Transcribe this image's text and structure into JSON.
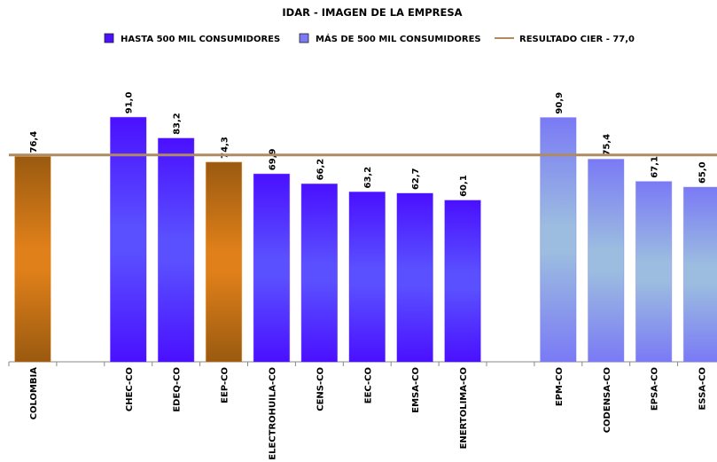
{
  "chart_data": {
    "type": "bar",
    "title": "IDAR - IMAGEN DE LA EMPRESA",
    "categories": [
      "COLOMBIA",
      null,
      "CHEC-CO",
      "EDEQ-CO",
      "EEP-CO",
      "ELECTROHUILA-CO",
      "CENS-CO",
      "EEC-CO",
      "EMSA-CO",
      "ENERTOLIMA-CO",
      null,
      "EPM-CO",
      "CODENSA-CO",
      "EPSA-CO",
      "ESSA-CO"
    ],
    "series": [
      {
        "name": "HASTA 500 MIL CONSUMIDORES",
        "color": "#4a10ff",
        "values": [
          null,
          null,
          91.0,
          83.2,
          null,
          69.9,
          66.2,
          63.2,
          62.7,
          60.1,
          null,
          null,
          null,
          null,
          null
        ],
        "value_labels": [
          null,
          null,
          "91,0",
          "83,2",
          null,
          "69,9",
          "66,2",
          "63,2",
          "62,7",
          "60,1",
          null,
          null,
          null,
          null,
          null
        ]
      },
      {
        "name": "MÁS DE 500 MIL CONSUMIDORES",
        "color": "#7a7af5",
        "values": [
          null,
          null,
          null,
          null,
          null,
          null,
          null,
          null,
          null,
          null,
          null,
          90.9,
          75.4,
          67.1,
          65.0
        ],
        "value_labels": [
          null,
          null,
          null,
          null,
          null,
          null,
          null,
          null,
          null,
          null,
          null,
          "90,9",
          "75,4",
          "67,1",
          "65,0"
        ]
      },
      {
        "color": "#e07d10",
        "values": [
          76.4,
          null,
          null,
          null,
          74.3,
          null,
          null,
          null,
          null,
          null,
          null,
          null,
          null,
          null,
          null
        ],
        "value_labels": [
          "76,4",
          null,
          null,
          null,
          "74,3",
          null,
          null,
          null,
          null,
          null,
          null,
          null,
          null,
          null,
          null
        ]
      }
    ],
    "reference_line": {
      "name": "RESULTADO CIER - 77,0",
      "value": 77,
      "color": "#b08a60"
    },
    "ylim": [
      0,
      100
    ]
  }
}
